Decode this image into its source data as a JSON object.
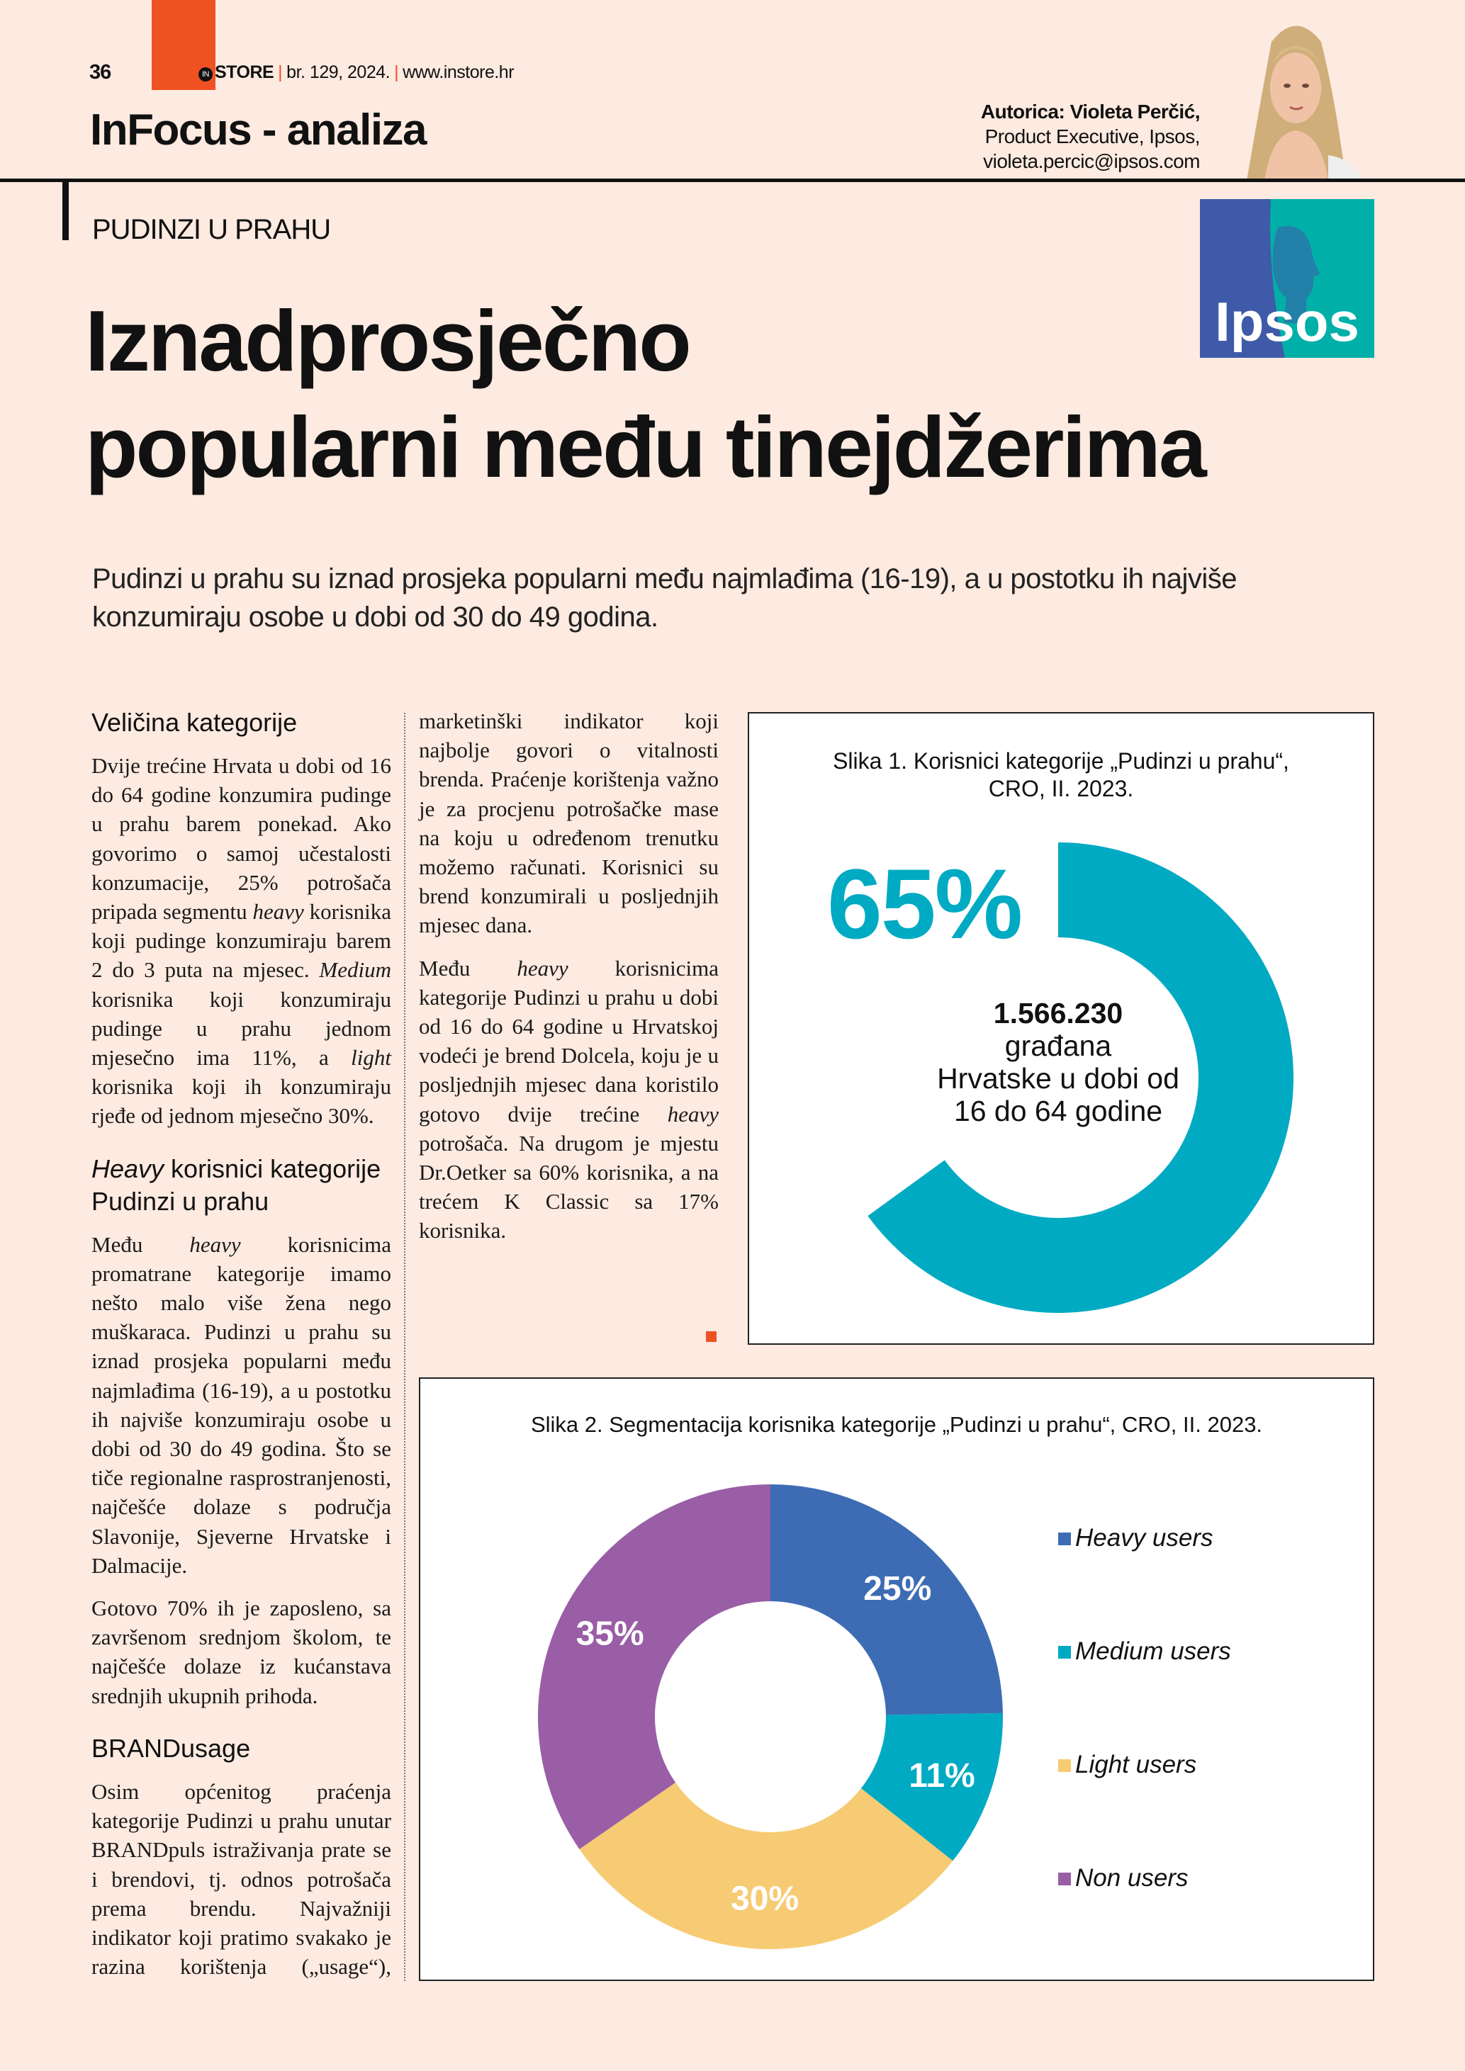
{
  "header": {
    "page_number": "36",
    "magazine_logo": "IN STORE",
    "issue": "br. 129, 2024.",
    "website": "www.instore.hr",
    "section": "InFocus - analiza"
  },
  "author": {
    "line1": "Autorica: Violeta Perčić,",
    "line2": "Product Executive, Ipsos,",
    "line3": "violeta.percic@ipsos.com"
  },
  "logo": {
    "text": "Ipsos",
    "colors": {
      "left": "#3f5aa8",
      "right": "#00b0a8"
    }
  },
  "article": {
    "kicker": "PUDINZI U PRAHU",
    "title_line1": "Iznadprosječno",
    "title_line2": "popularni među tinejdžerima",
    "lead": "Pudinzi u prahu su iznad prosjeka popularni među najmlađima (16-19), a u postotku ih najviše konzumiraju osobe u dobi od 30 do 49 godina.",
    "heading1": "Veličina kategorije",
    "para1": [
      {
        "t": "Dvije trećine Hrvata u dobi od 16 do 64 godine konzumira pudinge u prahu barem ponekad. Ako govorimo o samoj učestalosti konzumacije, 25% potrošača pripada segmentu "
      },
      {
        "t": "heavy",
        "i": true
      },
      {
        "t": " korisnika koji pudinge konzumiraju barem 2 do 3 puta na mjesec. "
      },
      {
        "t": "Medium",
        "i": true
      },
      {
        "t": " korisnika koji konzumiraju pudinge u prahu jednom mjesečno ima 11%, a "
      },
      {
        "t": "light",
        "i": true
      },
      {
        "t": " korisnika koji ih konzumiraju rjeđe od jednom mjesečno 30%."
      }
    ],
    "heading2_italic": "Heavy",
    "heading2_rest": " korisnici kategorije Pudinzi u prahu",
    "para2": [
      {
        "t": "Među "
      },
      {
        "t": "heavy",
        "i": true
      },
      {
        "t": " korisnicima promatrane kategorije imamo nešto malo više žena nego muškaraca. Pudinzi u prahu su iznad prosjeka popularni među najmlađima (16-19), a u postotku ih najviše konzumiraju osobe u dobi od 30 do 49 godina. Što se tiče regionalne rasprostranjenosti, najčešće dolaze s područja Slavonije, Sjeverne Hrvatske i Dalmacije."
      }
    ],
    "para3": [
      {
        "t": "Gotovo 70% ih je zaposleno, sa završenom srednjom školom, te najčešće dolaze iz kućanstava srednjih ukupnih prihoda."
      }
    ],
    "heading3": "BRANDusage",
    "para4": [
      {
        "t": "Osim općenitog praćenja kategorije Pudinzi u prahu unutar BRANDpuls istraživanja prate se i brendovi, tj. odnos potrošača prema brendu. Najvažniji indikator koji pratimo svakako je razina korištenja („usage“), marketinški indikator koji najbolje govori o vitalnosti brenda. Praćenje korištenja važno je za procjenu potrošačke mase na koju u određenom trenutku možemo računati. Korisnici su brend konzumirali u posljednjih mjesec dana."
      }
    ],
    "para5": [
      {
        "t": "Među "
      },
      {
        "t": "heavy",
        "i": true
      },
      {
        "t": " korisnicima kategorije Pudinzi u prahu u dobi od 16 do 64 godine u Hrvatskoj vodeći je brend Dolcela, koju je u posljednjih mjesec dana koristilo gotovo dvije trećine "
      },
      {
        "t": "heavy",
        "i": true
      },
      {
        "t": " potrošača. Na drugom je mjestu Dr.Oetker sa 60% korisnika, a na trećem K Classic sa 17% korisnika."
      }
    ]
  },
  "chart_data": [
    {
      "type": "pie",
      "variant": "donut-progress",
      "title_line1": "Slika 1. Korisnici kategorije „Pudinzi u prahu“,",
      "title_line2": "CRO, II. 2023.",
      "value_percent": 65,
      "value_label": "65%",
      "center_number": "1.566.230",
      "center_line1": "građana",
      "center_line2": "Hrvatske u dobi od",
      "center_line3": "16 do 64 godine",
      "color": "#00aac2"
    },
    {
      "type": "pie",
      "variant": "donut",
      "title": "Slika 2. Segmentacija korisnika kategorije „Pudinzi u prahu“, CRO, II. 2023.",
      "legend_position": "right",
      "categories": [
        "Heavy users",
        "Medium users",
        "Light users",
        "Non users"
      ],
      "values": [
        25,
        11,
        30,
        35
      ],
      "labels": [
        "25%",
        "11%",
        "30%",
        "35%"
      ],
      "colors": [
        "#3d6cb4",
        "#00aac2",
        "#f7cb73",
        "#995ea6"
      ]
    }
  ]
}
